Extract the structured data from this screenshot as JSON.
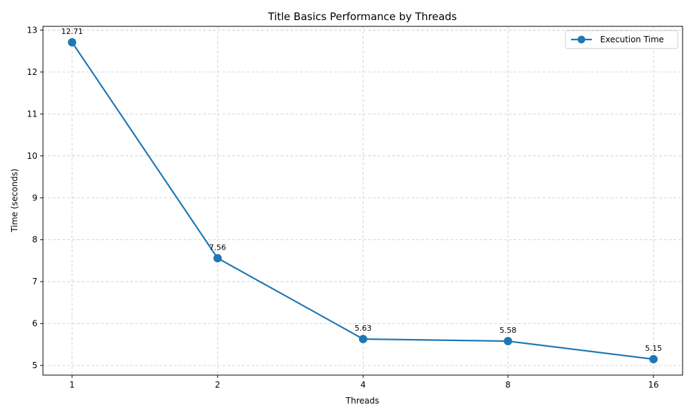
{
  "chart_data": {
    "type": "line",
    "title": "Title Basics Performance by Threads",
    "xlabel": "Threads",
    "ylabel": "Time (seconds)",
    "categories": [
      "1",
      "2",
      "4",
      "8",
      "16"
    ],
    "series": [
      {
        "name": "Execution Time",
        "values": [
          12.71,
          7.56,
          5.63,
          5.58,
          5.15
        ],
        "color": "#1f77b4"
      }
    ],
    "data_labels": [
      "12.71",
      "7.56",
      "5.63",
      "5.58",
      "5.15"
    ],
    "yticks": [
      5,
      6,
      7,
      8,
      9,
      10,
      11,
      12,
      13
    ],
    "ylim": [
      4.77,
      13.09
    ],
    "grid": true,
    "legend_position": "top-right"
  }
}
